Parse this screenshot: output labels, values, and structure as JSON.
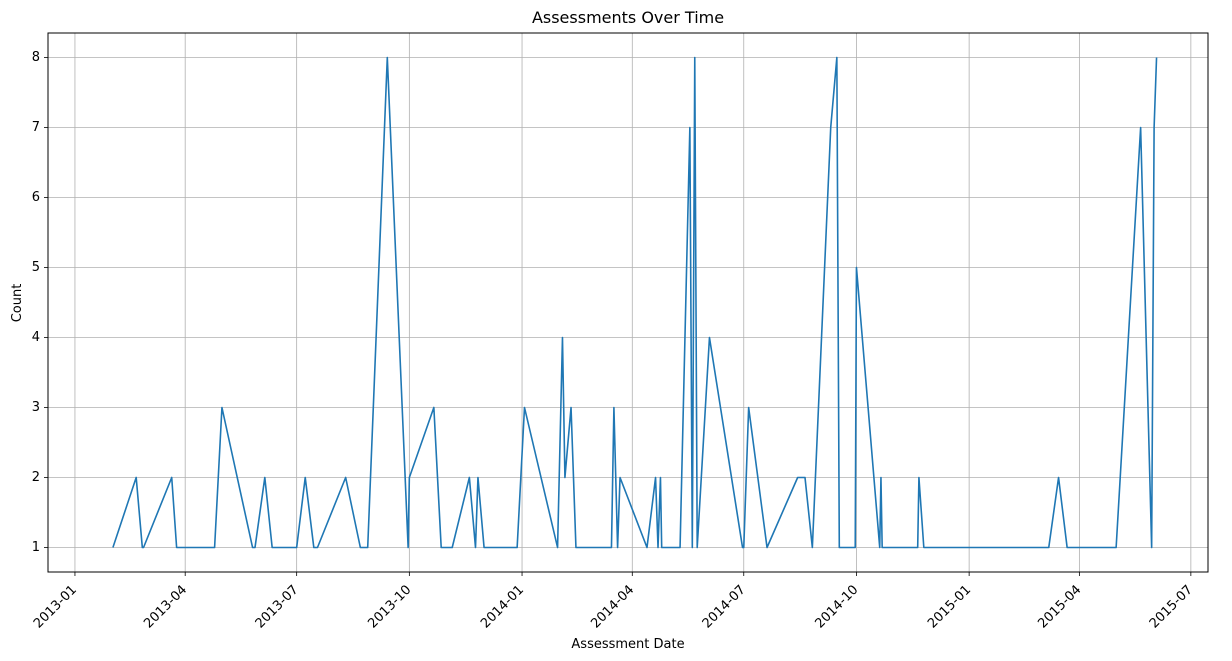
{
  "chart_data": {
    "type": "line",
    "title": "Assessments Over Time",
    "xlabel": "Assessment Date",
    "ylabel": "Count",
    "grid": true,
    "line_color": "#1f77b4",
    "xlim": [
      "2012-12-10",
      "2015-07-15"
    ],
    "ylim": [
      0.65,
      8.35
    ],
    "x_ticks": [
      "2013-01",
      "2013-04",
      "2013-07",
      "2013-10",
      "2014-01",
      "2014-04",
      "2014-07",
      "2014-10",
      "2015-01",
      "2015-04",
      "2015-07"
    ],
    "y_ticks": [
      "1",
      "2",
      "3",
      "4",
      "5",
      "6",
      "7",
      "8"
    ],
    "series": [
      {
        "x": [
          "2013-02-01",
          "2013-02-20",
          "2013-02-25",
          "2013-02-26",
          "2013-03-21",
          "2013-03-25",
          "2013-04-25",
          "2013-05-01",
          "2013-05-26",
          "2013-05-28",
          "2013-06-05",
          "2013-06-11",
          "2013-07-01",
          "2013-07-08",
          "2013-07-15",
          "2013-07-18",
          "2013-08-10",
          "2013-08-22",
          "2013-08-28",
          "2013-09-13",
          "2013-09-30",
          "2013-10-01",
          "2013-10-21",
          "2013-10-27",
          "2013-11-05",
          "2013-11-19",
          "2013-11-24",
          "2013-11-26",
          "2013-12-01",
          "2013-12-28",
          "2014-01-03",
          "2014-01-30",
          "2014-02-03",
          "2014-02-05",
          "2014-02-10",
          "2014-02-14",
          "2014-03-15",
          "2014-03-17",
          "2014-03-20",
          "2014-03-22",
          "2014-04-13",
          "2014-04-20",
          "2014-04-22",
          "2014-04-24",
          "2014-04-25",
          "2014-05-06",
          "2014-05-10",
          "2014-05-18",
          "2014-05-20",
          "2014-05-22",
          "2014-05-24",
          "2014-06-03",
          "2014-06-30",
          "2014-07-01",
          "2014-07-05",
          "2014-07-20",
          "2014-08-14",
          "2014-08-20",
          "2014-08-26",
          "2014-09-10",
          "2014-09-15",
          "2014-09-17",
          "2014-09-30",
          "2014-10-01",
          "2014-10-20",
          "2014-10-21",
          "2014-10-22",
          "2014-11-20",
          "2014-11-21",
          "2014-11-25",
          "2015-03-07",
          "2015-03-15",
          "2015-03-22",
          "2015-05-01",
          "2015-05-21",
          "2015-05-30",
          "2015-06-01",
          "2015-06-03"
        ],
        "y": [
          1,
          2,
          1,
          1,
          2,
          1,
          1,
          3,
          1,
          1,
          2,
          1,
          1,
          2,
          1,
          1,
          2,
          1,
          1,
          8,
          1,
          2,
          3,
          1,
          1,
          2,
          1,
          2,
          1,
          1,
          3,
          1,
          4,
          2,
          3,
          1,
          1,
          3,
          1,
          2,
          1,
          2,
          1,
          2,
          1,
          1,
          1,
          7,
          1,
          8,
          1,
          4,
          1,
          1,
          3,
          1,
          2,
          2,
          1,
          7,
          8,
          1,
          1,
          5,
          1,
          2,
          1,
          1,
          2,
          1,
          1,
          2,
          1,
          1,
          7,
          1,
          7,
          8
        ]
      }
    ]
  }
}
